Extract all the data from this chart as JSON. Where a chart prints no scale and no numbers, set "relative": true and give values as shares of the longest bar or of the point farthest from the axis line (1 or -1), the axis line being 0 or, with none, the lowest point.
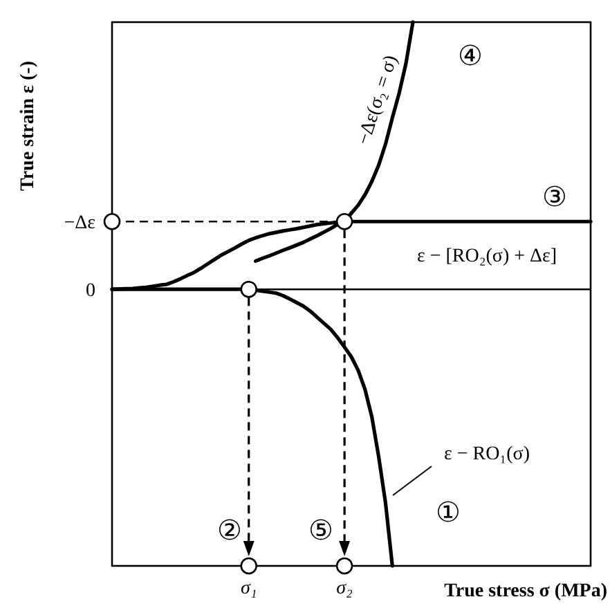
{
  "chart_data": {
    "type": "line",
    "relative": true,
    "xlabel": "True stress σ (MPa)",
    "ylabel": "True strain ε (-)",
    "categories": [
      null,
      null,
      null,
      null,
      null,
      null,
      null,
      null,
      null,
      null,
      null,
      null,
      null,
      null,
      null,
      null,
      null,
      null,
      null,
      null,
      "σ₁",
      null,
      null,
      null,
      null,
      null,
      null,
      null,
      null,
      null,
      null,
      null,
      null,
      null,
      "σ₂",
      null,
      null,
      null,
      null,
      null,
      null,
      null,
      null,
      null,
      null,
      null,
      null,
      null,
      null,
      null,
      null,
      null,
      null,
      null,
      null,
      null,
      null,
      null,
      null,
      null,
      null,
      null,
      null,
      null,
      null,
      null,
      null,
      null,
      null,
      null,
      null
    ],
    "series": [
      {
        "color": "#000000",
        "values": [
          0,
          0,
          0,
          0,
          0,
          0,
          0,
          0,
          0,
          0,
          0,
          0,
          0,
          0,
          0,
          0,
          0,
          0,
          0,
          0,
          0,
          -0.003,
          -0.007,
          -0.01,
          -0.014,
          -0.023,
          -0.035,
          -0.048,
          -0.061,
          -0.079,
          -0.101,
          -0.123,
          -0.145,
          -0.175,
          -0.209,
          -0.244,
          -0.293,
          -0.362,
          -0.461,
          -0.605,
          -0.772,
          -1,
          null,
          null,
          null,
          null,
          null,
          null,
          null,
          null,
          null,
          null,
          null,
          null,
          null,
          null,
          null,
          null,
          null,
          null,
          null,
          null,
          null,
          null,
          null,
          null,
          null,
          null,
          null,
          null,
          null
        ]
      },
      {
        "color": "#000000",
        "values": [
          null,
          null,
          null,
          null,
          null,
          null,
          null,
          null,
          null,
          null,
          null,
          null,
          null,
          null,
          null,
          null,
          null,
          null,
          null,
          null,
          null,
          0.102,
          0.112,
          0.121,
          0.131,
          0.141,
          0.15,
          0.16,
          0.17,
          0.182,
          0.194,
          0.207,
          0.22,
          0.235,
          0.245,
          0.245,
          0.245,
          0.245,
          0.245,
          0.245,
          0.245,
          0.245,
          0.245,
          0.245,
          0.245,
          0.245,
          0.245,
          0.245,
          0.245,
          0.245,
          0.245,
          0.245,
          0.245,
          0.245,
          0.245,
          0.245,
          0.245,
          0.245,
          0.245,
          0.245,
          0.245,
          0.245,
          0.245,
          0.245,
          0.245,
          0.245,
          0.245,
          0.245,
          0.245,
          0.245,
          0.245
        ]
      },
      {
        "color": "#000000",
        "values": [
          0,
          0.001,
          0.002,
          0.003,
          0.005,
          0.007,
          0.011,
          0.015,
          0.018,
          0.027,
          0.038,
          0.05,
          0.061,
          0.076,
          0.092,
          0.108,
          0.124,
          0.137,
          0.15,
          0.164,
          0.177,
          0.186,
          0.194,
          0.201,
          0.206,
          0.211,
          0.215,
          0.219,
          0.224,
          0.229,
          0.234,
          0.237,
          0.24,
          0.243,
          0.245,
          0.275,
          0.304,
          0.342,
          0.39,
          0.449,
          0.525,
          0.62,
          0.71,
          0.818,
          0.966,
          null,
          null,
          null,
          null,
          null,
          null,
          null,
          null,
          null,
          null,
          null,
          null,
          null,
          null,
          null,
          null,
          null,
          null,
          null,
          null,
          null,
          null,
          null,
          null,
          null,
          null
        ]
      },
      {
        "type": "scatter",
        "marker": "circle",
        "color": "#000000",
        "values": [
          0.245,
          null,
          null,
          null,
          null,
          null,
          null,
          null,
          null,
          null,
          null,
          null,
          null,
          null,
          null,
          null,
          null,
          null,
          null,
          null,
          0,
          null,
          null,
          null,
          null,
          null,
          null,
          null,
          null,
          null,
          null,
          null,
          null,
          null,
          0.245,
          null,
          null,
          null,
          null,
          null,
          null,
          null,
          null,
          null,
          null,
          null,
          null,
          null,
          null,
          null,
          null,
          null,
          null,
          null,
          null,
          null,
          null,
          null,
          null,
          null,
          null,
          null,
          null,
          null,
          null,
          null,
          null,
          null,
          null,
          null,
          null
        ]
      },
      {
        "type": "scatter",
        "marker": "circle",
        "color": "#000000",
        "values": [
          null,
          null,
          null,
          null,
          null,
          null,
          null,
          null,
          null,
          null,
          null,
          null,
          null,
          null,
          null,
          null,
          null,
          null,
          null,
          null,
          -1,
          null,
          null,
          null,
          null,
          null,
          null,
          null,
          null,
          null,
          null,
          null,
          null,
          null,
          -1,
          null,
          null,
          null,
          null,
          null,
          null,
          null,
          null,
          null,
          null,
          null,
          null,
          null,
          null,
          null,
          null,
          null,
          null,
          null,
          null,
          null,
          null,
          null,
          null,
          null,
          null,
          null,
          null,
          null,
          null,
          null,
          null,
          null,
          null,
          null,
          null
        ]
      }
    ],
    "ref_lines": [
      {
        "axis": "y",
        "value": 0,
        "label": "0",
        "color": "#000000",
        "line_style": "solid"
      },
      {
        "axis": "y",
        "value": 0.245,
        "label": "−Δε",
        "color": "#000000",
        "line_style": "dashed"
      },
      {
        "axis": "x",
        "value": "σ₁",
        "color": "#000000",
        "line_style": "dashed"
      },
      {
        "axis": "x",
        "value": "σ₂",
        "color": "#000000",
        "line_style": "dashed"
      }
    ],
    "annotations": [
      "ε − RO₁(σ)",
      "ε − [RO₂(σ) + Δε]",
      "−Δε(σ₂ = σ)",
      "①",
      "②",
      "③",
      "④",
      "⑤"
    ]
  }
}
